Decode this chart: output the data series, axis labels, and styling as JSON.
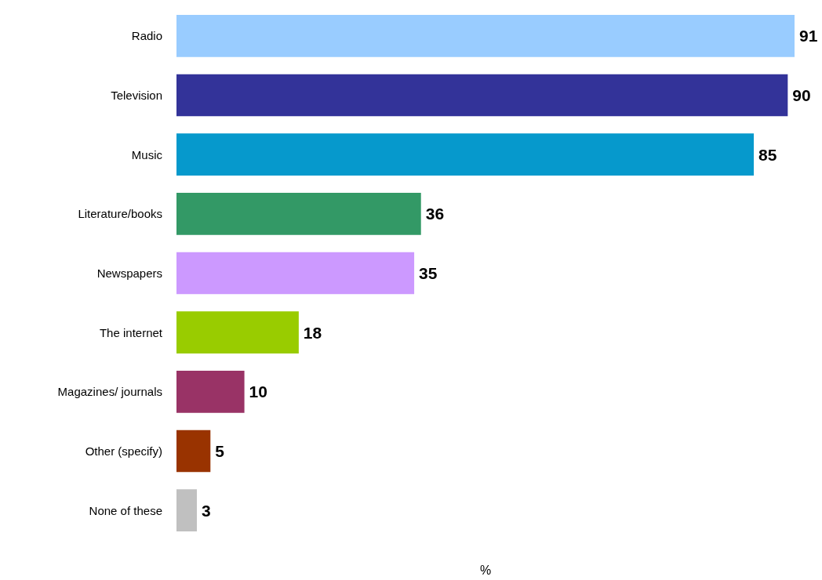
{
  "chart_data": {
    "type": "bar",
    "orientation": "horizontal",
    "xlabel": "%",
    "categories": [
      "Radio",
      "Television",
      "Music",
      "Literature/books",
      "Newspapers",
      "The internet",
      "Magazines/ journals",
      "Other (specify)",
      "None of these"
    ],
    "values": [
      91,
      90,
      85,
      36,
      35,
      18,
      10,
      5,
      3
    ],
    "colors": [
      "#99ccff",
      "#333399",
      "#0699cc",
      "#339966",
      "#cc99ff",
      "#99cc00",
      "#993366",
      "#993300",
      "#c0c0c0"
    ],
    "data_labels": true
  }
}
